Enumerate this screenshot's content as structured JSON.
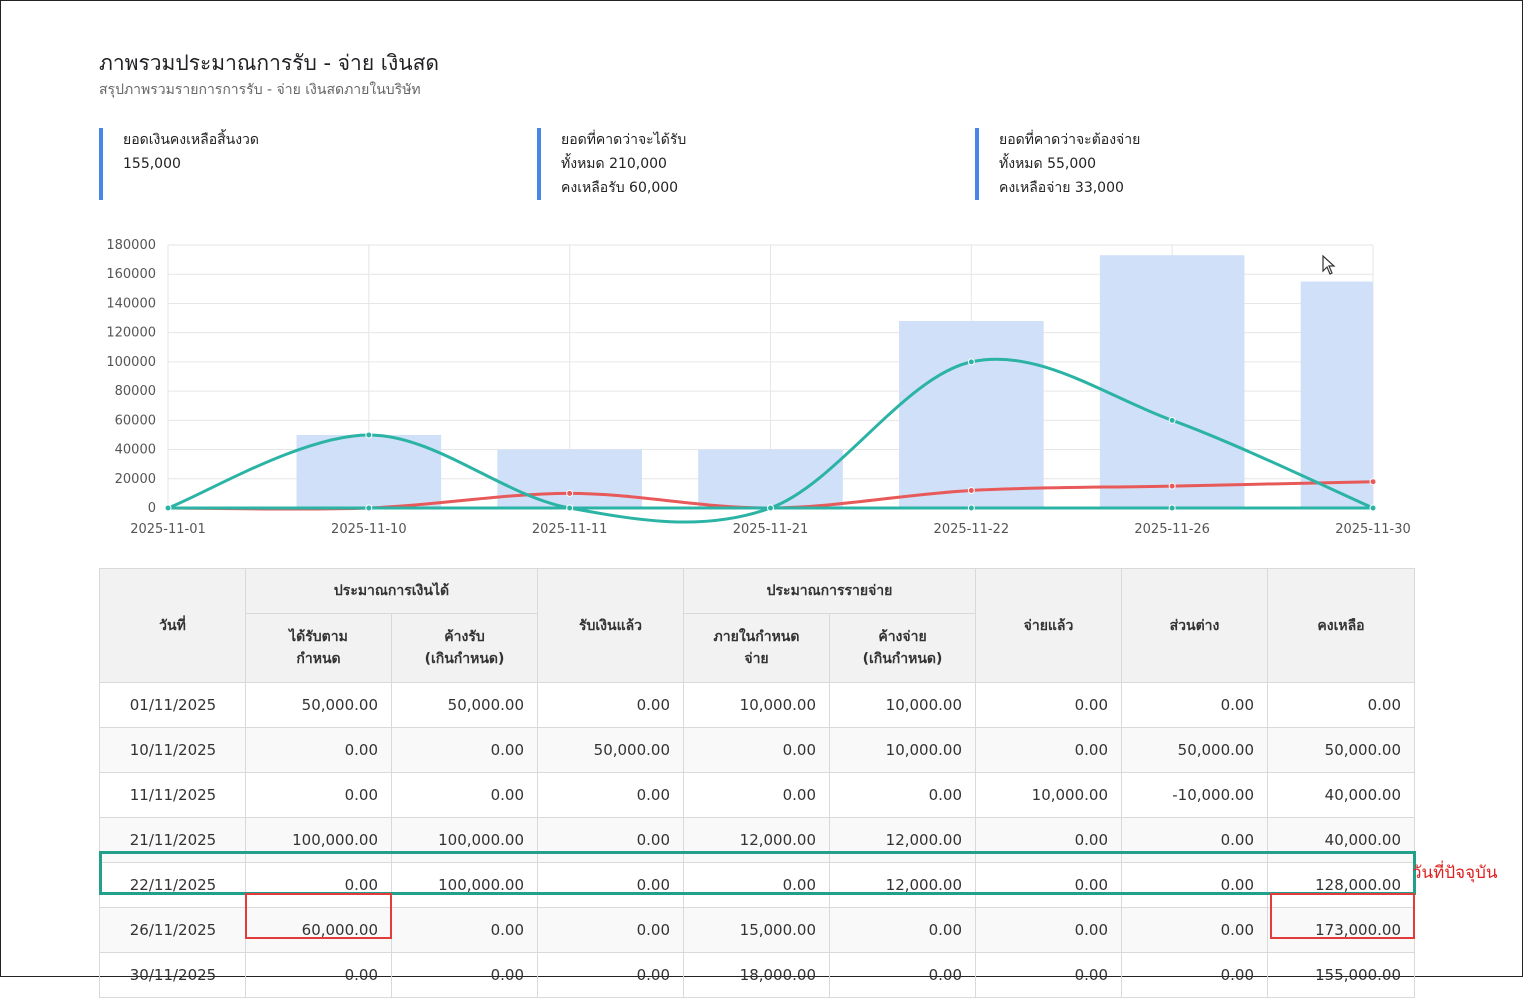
{
  "header": {
    "title": "ภาพรวมประมาณการรับ - จ่าย เงินสด",
    "subtitle": "สรุปภาพรวมรายการการรับ - จ่าย เงินสดภายในบริษัท"
  },
  "stats": [
    {
      "label": "ยอดเงินคงเหลือสิ้นงวด",
      "line1": "155,000",
      "line2": ""
    },
    {
      "label": "ยอดที่คาดว่าจะได้รับ",
      "line1": "ทั้งหมด 210,000",
      "line2": "คงเหลือรับ 60,000"
    },
    {
      "label": "ยอดที่คาดว่าจะต้องจ่าย",
      "line1": "ทั้งหมด 55,000",
      "line2": "คงเหลือจ่าย 33,000"
    }
  ],
  "chart_data": {
    "type": "bar",
    "categories": [
      "2025-11-01",
      "2025-11-10",
      "2025-11-11",
      "2025-11-21",
      "2025-11-22",
      "2025-11-26",
      "2025-11-30"
    ],
    "ylim": [
      0,
      180000
    ],
    "yticks": [
      0,
      20000,
      40000,
      60000,
      80000,
      100000,
      120000,
      140000,
      160000,
      180000
    ],
    "grid": true,
    "series": [
      {
        "kind": "bar",
        "color": "#cfe0f8",
        "values": [
          0,
          50000,
          40000,
          40000,
          128000,
          173000,
          155000
        ]
      },
      {
        "kind": "line",
        "color": "#e85a5a",
        "values": [
          0,
          0,
          10000,
          0,
          12000,
          15000,
          18000
        ]
      },
      {
        "kind": "line",
        "color": "#2bb3a5",
        "values": [
          0,
          50000,
          0,
          0,
          100000,
          60000,
          0
        ]
      },
      {
        "kind": "line",
        "color": "#2bb3a5",
        "values": [
          0,
          0,
          0,
          0,
          0,
          0,
          0
        ]
      }
    ]
  },
  "table": {
    "headers": {
      "date": "วันที่",
      "income_group": "ประมาณการเงินได้",
      "income_due": "ได้รับตาม\nกำหนด",
      "income_overdue": "ค้างรับ\n(เกินกำหนด)",
      "received": "รับเงินแล้ว",
      "expense_group": "ประมาณการรายจ่าย",
      "expense_due": "ภายในกำหนด\nจ่าย",
      "expense_overdue": "ค้างจ่าย\n(เกินกำหนด)",
      "paid": "จ่ายแล้ว",
      "diff": "ส่วนต่าง",
      "balance": "คงเหลือ"
    },
    "rows": [
      [
        "01/11/2025",
        "50,000.00",
        "50,000.00",
        "0.00",
        "10,000.00",
        "10,000.00",
        "0.00",
        "0.00",
        "0.00"
      ],
      [
        "10/11/2025",
        "0.00",
        "0.00",
        "50,000.00",
        "0.00",
        "10,000.00",
        "0.00",
        "50,000.00",
        "50,000.00"
      ],
      [
        "11/11/2025",
        "0.00",
        "0.00",
        "0.00",
        "0.00",
        "0.00",
        "10,000.00",
        "-10,000.00",
        "40,000.00"
      ],
      [
        "21/11/2025",
        "100,000.00",
        "100,000.00",
        "0.00",
        "12,000.00",
        "12,000.00",
        "0.00",
        "0.00",
        "40,000.00"
      ],
      [
        "22/11/2025",
        "0.00",
        "100,000.00",
        "0.00",
        "0.00",
        "12,000.00",
        "0.00",
        "0.00",
        "128,000.00"
      ],
      [
        "26/11/2025",
        "60,000.00",
        "0.00",
        "0.00",
        "15,000.00",
        "0.00",
        "0.00",
        "0.00",
        "173,000.00"
      ],
      [
        "30/11/2025",
        "0.00",
        "0.00",
        "0.00",
        "18,000.00",
        "0.00",
        "0.00",
        "0.00",
        "155,000.00"
      ]
    ]
  },
  "annotations": {
    "today_note": "วันที่ปัจจุบัน",
    "colors": {
      "today": "#22a08b",
      "highlight": "#e23c3c"
    }
  }
}
